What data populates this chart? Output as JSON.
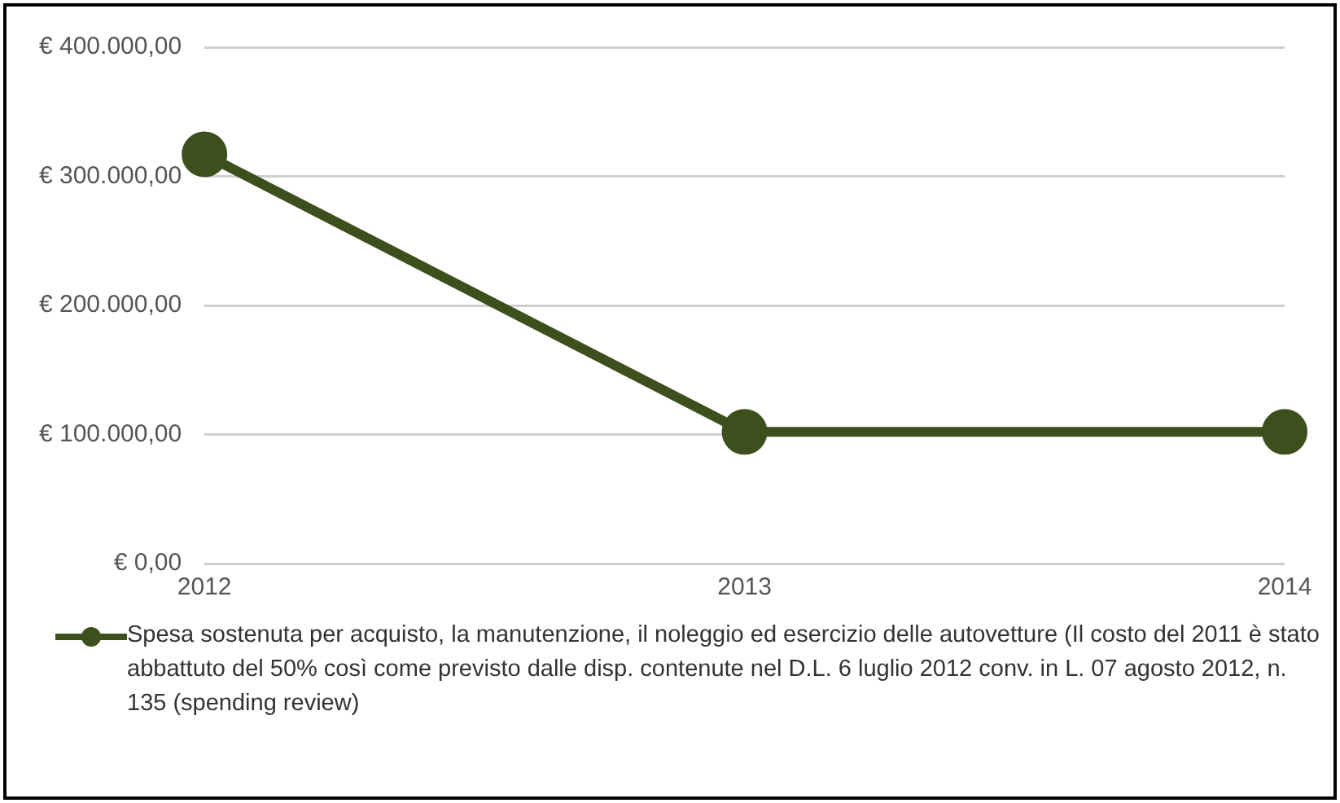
{
  "chart_data": {
    "type": "line",
    "categories": [
      "2012",
      "2013",
      "2014"
    ],
    "series": [
      {
        "name": "Spesa sostenuta per acquisto, la manutenzione, il noleggio ed esercizio delle autovetture (Il costo del 2011 è stato abbattuto del 50% così come previsto dalle disp. contenute nel D.L. 6 luglio 2012 conv. in L. 07 agosto 2012, n. 135 (spending review)",
        "color": "#3d4f1c",
        "values": [
          317000,
          102000,
          102000
        ]
      }
    ],
    "ylim": [
      0,
      400000
    ],
    "yticks": [
      {
        "value": 0,
        "label": "€ 0,00"
      },
      {
        "value": 100000,
        "label": "€ 100.000,00"
      },
      {
        "value": 200000,
        "label": "€ 200.000,00"
      },
      {
        "value": 300000,
        "label": "€ 300.000,00"
      },
      {
        "value": 400000,
        "label": "€ 400.000,00"
      }
    ],
    "grid": "y",
    "legend": "bottom",
    "marker": "circle",
    "line_style": "solid"
  }
}
